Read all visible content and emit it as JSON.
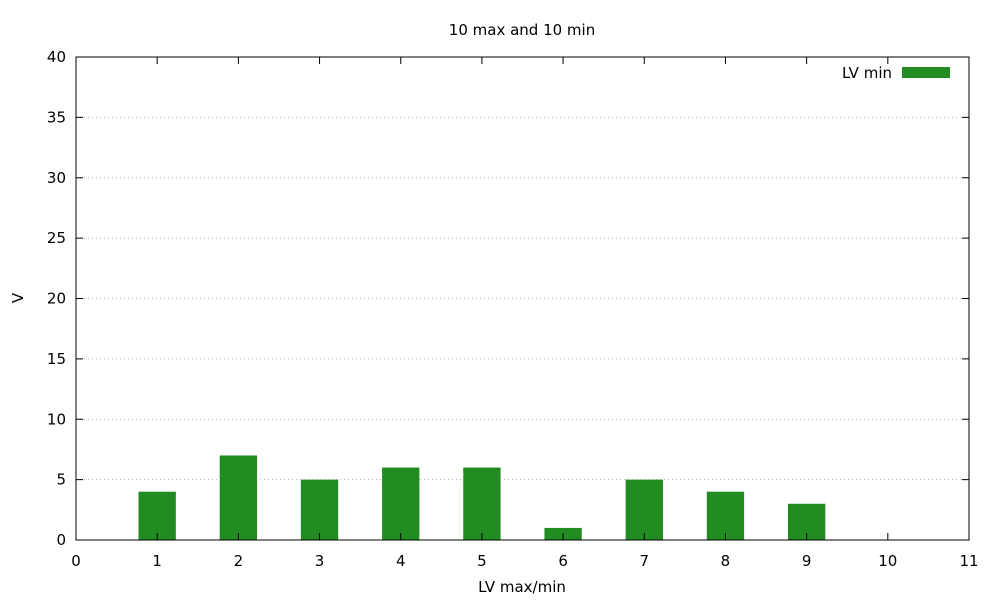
{
  "chart_data": {
    "type": "bar",
    "title": "10 max and 10 min",
    "xlabel": "LV max/min",
    "ylabel": "V",
    "xlim": [
      0,
      11
    ],
    "ylim": [
      0,
      40
    ],
    "x_ticks": [
      0,
      1,
      2,
      3,
      4,
      5,
      6,
      7,
      8,
      9,
      10,
      11
    ],
    "y_ticks": [
      0,
      5,
      10,
      15,
      20,
      25,
      30,
      35,
      40
    ],
    "grid": true,
    "legend_position": "top-right",
    "series": [
      {
        "name": "LV min",
        "color": "#228b22",
        "x": [
          1,
          2,
          3,
          4,
          5,
          6,
          7,
          8,
          9
        ],
        "values": [
          4,
          7,
          5,
          6,
          6,
          1,
          5,
          4,
          3
        ]
      }
    ]
  }
}
